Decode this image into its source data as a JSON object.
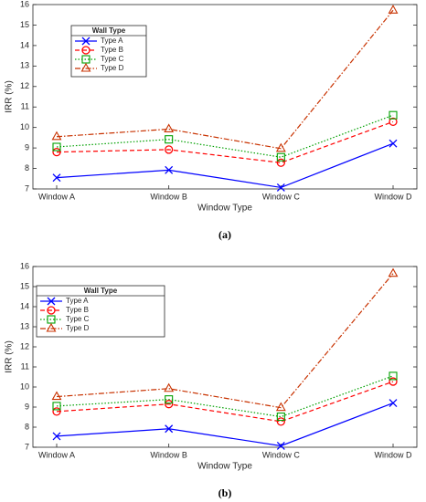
{
  "chart_data": [
    {
      "type": "line",
      "caption": "(a)",
      "x_label": "Window Type",
      "y_label": "IRR (%)",
      "categories": [
        "Window A",
        "Window B",
        "Window C",
        "Window D"
      ],
      "ylim": [
        7,
        16
      ],
      "yticks": [
        7,
        8,
        9,
        10,
        11,
        12,
        13,
        14,
        15,
        16
      ],
      "grid": false,
      "legend_title": "Wall Type",
      "legend": "upper left",
      "series": [
        {
          "name": "Type A",
          "color": "#0000ff",
          "dash": "solid",
          "marker": "x",
          "values": [
            7.55,
            7.92,
            7.07,
            9.22
          ]
        },
        {
          "name": "Type B",
          "color": "#ff0000",
          "dash": "dashed",
          "marker": "circle",
          "values": [
            8.8,
            8.92,
            8.28,
            10.28
          ]
        },
        {
          "name": "Type C",
          "color": "#00a000",
          "dash": "dotted",
          "marker": "square",
          "values": [
            9.05,
            9.42,
            8.55,
            10.6
          ]
        },
        {
          "name": "Type D",
          "color": "#c83200",
          "dash": "dashdot",
          "marker": "triangle",
          "values": [
            9.55,
            9.92,
            8.97,
            15.72
          ]
        }
      ]
    },
    {
      "type": "line",
      "caption": "(b)",
      "x_label": "Window Type",
      "y_label": "IRR (%)",
      "categories": [
        "Window A",
        "Window B",
        "Window C",
        "Window D"
      ],
      "ylim": [
        7,
        16
      ],
      "yticks": [
        7,
        8,
        9,
        10,
        11,
        12,
        13,
        14,
        15,
        16
      ],
      "grid": false,
      "legend_title": "Wall Type",
      "legend": "upper left",
      "series": [
        {
          "name": "Type A",
          "color": "#0000ff",
          "dash": "solid",
          "marker": "x",
          "values": [
            7.55,
            7.92,
            7.07,
            9.2
          ]
        },
        {
          "name": "Type B",
          "color": "#ff0000",
          "dash": "dashed",
          "marker": "circle",
          "values": [
            8.78,
            9.15,
            8.28,
            10.27
          ]
        },
        {
          "name": "Type C",
          "color": "#00a000",
          "dash": "dotted",
          "marker": "square",
          "values": [
            9.05,
            9.38,
            8.52,
            10.55
          ]
        },
        {
          "name": "Type D",
          "color": "#c83200",
          "dash": "dashdot",
          "marker": "triangle",
          "values": [
            9.52,
            9.92,
            8.97,
            15.65
          ]
        }
      ]
    }
  ]
}
